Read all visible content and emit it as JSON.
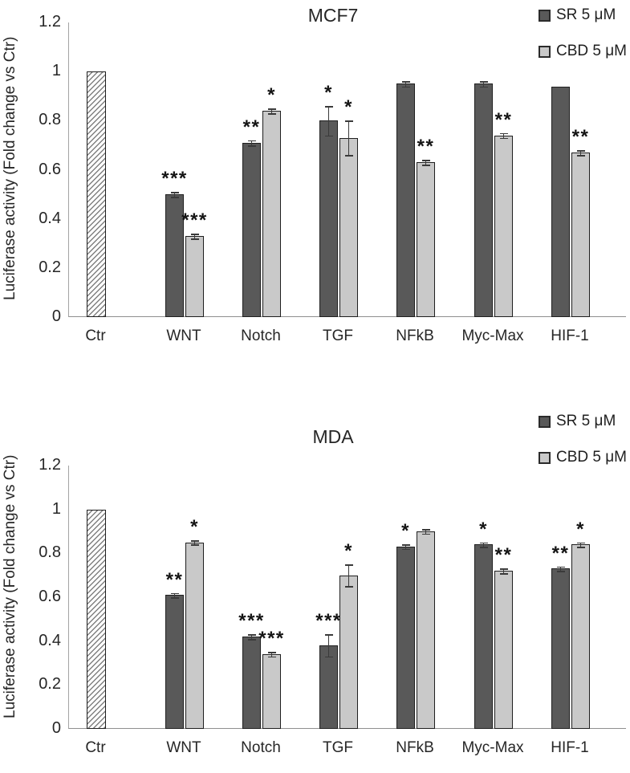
{
  "figure": {
    "background": "#ffffff"
  },
  "colors": {
    "sr_fill": "#595959",
    "cbd_fill": "#c9c9c9",
    "bar_border": "#1f1f1f",
    "axis": "#9a9a9a",
    "text": "#262626"
  },
  "chart_data": [
    {
      "type": "bar",
      "title": "MCF7",
      "ylabel": "Luciferase activity (Fold change vs Ctr)",
      "xlabel": "",
      "ylim": [
        0,
        1.2
      ],
      "yticks": [
        "0",
        "0.2",
        "0.4",
        "0.6",
        "0.8",
        "1",
        "1.2"
      ],
      "ytick_values": [
        0,
        0.2,
        0.4,
        0.6,
        0.8,
        1,
        1.2
      ],
      "categories": [
        "Ctr",
        "WNT",
        "Notch",
        "TGF",
        "NFkB",
        "Myc-Max",
        "HIF-1"
      ],
      "grid": false,
      "legend_position": "top-right",
      "control": {
        "category": "Ctr",
        "value": 1.0,
        "fill": "diagonal-hatch",
        "significance": ""
      },
      "series": [
        {
          "name": "SR 5 μM",
          "color": "#595959",
          "values": [
            null,
            0.5,
            0.71,
            0.8,
            0.95,
            0.95,
            0.94
          ],
          "errors": [
            0,
            0.01,
            0.01,
            0.06,
            0.01,
            0.01,
            0
          ],
          "significance": [
            "",
            "***",
            "**",
            "*",
            "",
            "",
            ""
          ]
        },
        {
          "name": "CBD 5 μM",
          "color": "#c9c9c9",
          "values": [
            null,
            0.33,
            0.84,
            0.73,
            0.63,
            0.74,
            0.67
          ],
          "errors": [
            0,
            0.01,
            0.01,
            0.07,
            0.01,
            0.01,
            0.01
          ],
          "significance": [
            "",
            "***",
            "*",
            "*",
            "**",
            "**",
            "**"
          ]
        }
      ]
    },
    {
      "type": "bar",
      "title": "MDA",
      "ylabel": "Luciferase activity (Fold change vs Ctr)",
      "xlabel": "",
      "ylim": [
        0,
        1.2
      ],
      "yticks": [
        "0",
        "0.2",
        "0.4",
        "0.6",
        "0.8",
        "1",
        "1.2"
      ],
      "ytick_values": [
        0,
        0.2,
        0.4,
        0.6,
        0.8,
        1,
        1.2
      ],
      "categories": [
        "Ctr",
        "WNT",
        "Notch",
        "TGF",
        "NFkB",
        "Myc-Max",
        "HIF-1"
      ],
      "grid": false,
      "legend_position": "top-right",
      "control": {
        "category": "Ctr",
        "value": 1.0,
        "fill": "diagonal-hatch",
        "significance": ""
      },
      "series": [
        {
          "name": "SR 5 μM",
          "color": "#595959",
          "values": [
            null,
            0.61,
            0.42,
            0.38,
            0.83,
            0.84,
            0.73
          ],
          "errors": [
            0,
            0.01,
            0.01,
            0.05,
            0.01,
            0.01,
            0.01
          ],
          "significance": [
            "",
            "**",
            "***",
            "***",
            "*",
            "*",
            "**"
          ]
        },
        {
          "name": "CBD 5 μM",
          "color": "#c9c9c9",
          "values": [
            null,
            0.85,
            0.34,
            0.7,
            0.9,
            0.72,
            0.84
          ],
          "errors": [
            0,
            0.01,
            0.01,
            0.05,
            0.01,
            0.01,
            0.01
          ],
          "significance": [
            "",
            "*",
            "***",
            "*",
            "",
            "**",
            "*"
          ]
        }
      ]
    }
  ]
}
